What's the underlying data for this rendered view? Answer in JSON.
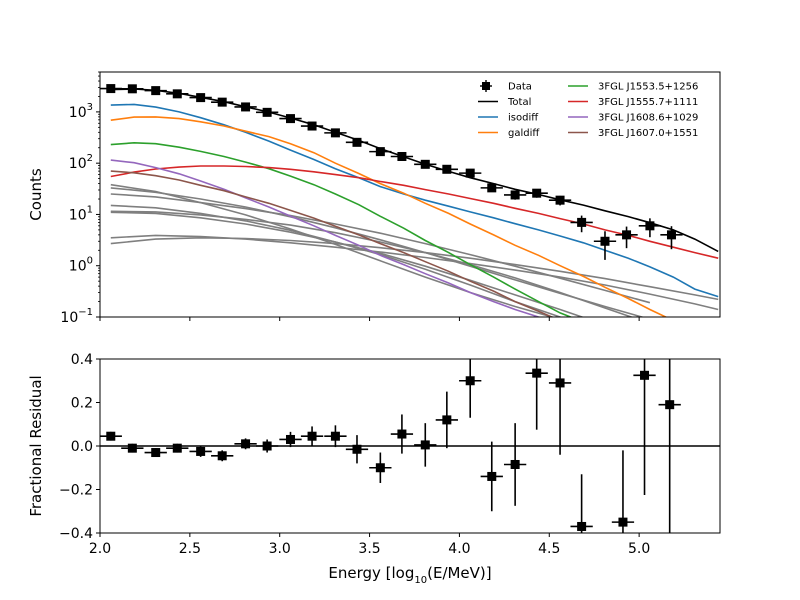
{
  "chart_data": [
    {
      "type": "line",
      "panel": "top",
      "ylabel": "Counts",
      "yscale": "log",
      "xlim": [
        2.0,
        5.45
      ],
      "ylim": [
        0.1,
        6000
      ],
      "grid": false,
      "legend_placement": "top-right",
      "x_ticks": [
        "2.0",
        "2.5",
        "3.0",
        "3.5",
        "4.0",
        "4.5",
        "5.0"
      ],
      "y_ticks": [
        {
          "base": "10",
          "exp": "3",
          "value": 1000
        },
        {
          "base": "10",
          "exp": "2",
          "value": 100
        },
        {
          "base": "10",
          "exp": "1",
          "value": 10
        },
        {
          "base": "10",
          "exp": "0",
          "value": 1
        },
        {
          "base": "10",
          "exp": "−1",
          "value": 0.1
        }
      ],
      "data_points": {
        "name": "Data",
        "color": "#000000",
        "x": [
          2.06,
          2.18,
          2.31,
          2.43,
          2.56,
          2.68,
          2.81,
          2.93,
          3.06,
          3.18,
          3.31,
          3.43,
          3.56,
          3.68,
          3.81,
          3.93,
          4.06,
          4.18,
          4.31,
          4.43,
          4.56,
          4.68,
          4.81,
          4.93,
          5.06,
          5.18
        ],
        "y": [
          2850,
          2820,
          2600,
          2250,
          1900,
          1550,
          1250,
          980,
          740,
          530,
          390,
          255,
          168,
          135,
          95,
          76,
          64,
          33,
          24,
          26,
          19,
          7,
          3,
          4,
          6,
          4
        ],
        "yerr_low": [
          55,
          55,
          52,
          48,
          44,
          40,
          36,
          31,
          27,
          23,
          20,
          16,
          13,
          11,
          9,
          8,
          8,
          5.5,
          4.6,
          4.8,
          4,
          2.5,
          1.7,
          1.8,
          2.4,
          1.9
        ],
        "yerr_high": [
          55,
          55,
          52,
          48,
          44,
          40,
          36,
          31,
          27,
          23,
          20,
          16,
          13,
          11,
          9,
          8,
          8,
          5.5,
          4.6,
          4.8,
          4,
          2.5,
          1.7,
          1.8,
          2.4,
          1.9
        ],
        "xerr": 0.062
      },
      "series": [
        {
          "name": "Total",
          "color": "#000000",
          "x": [
            2.06,
            2.19,
            2.31,
            2.44,
            2.56,
            2.69,
            2.81,
            2.94,
            3.06,
            3.19,
            3.31,
            3.44,
            3.56,
            3.69,
            3.81,
            3.94,
            4.06,
            4.19,
            4.31,
            4.44,
            4.56,
            4.69,
            4.81,
            4.94,
            5.06,
            5.19,
            5.31,
            5.44
          ],
          "y": [
            2720,
            2800,
            2640,
            2300,
            1930,
            1580,
            1260,
            990,
            760,
            560,
            400,
            278,
            192,
            133,
            95,
            69,
            52,
            40,
            31,
            24.5,
            19.3,
            15.2,
            11.8,
            9.1,
            6.9,
            5.0,
            3.3,
            1.9
          ]
        },
        {
          "name": "isodiff",
          "color": "#1f77b4",
          "x": [
            2.06,
            2.19,
            2.31,
            2.44,
            2.56,
            2.69,
            2.81,
            2.94,
            3.06,
            3.19,
            3.31,
            3.44,
            3.56,
            3.69,
            3.81,
            3.94,
            4.06,
            4.19,
            4.31,
            4.44,
            4.56,
            4.69,
            4.81,
            4.94,
            5.06,
            5.19,
            5.31,
            5.44
          ],
          "y": [
            1360,
            1400,
            1240,
            1000,
            770,
            560,
            400,
            270,
            180,
            118,
            78,
            52,
            35,
            25,
            19,
            14.5,
            11.2,
            8.6,
            6.6,
            5.0,
            3.8,
            2.8,
            2.0,
            1.4,
            0.95,
            0.6,
            0.35,
            0.25
          ]
        },
        {
          "name": "galdiff",
          "color": "#ff7f0e",
          "x": [
            2.06,
            2.19,
            2.31,
            2.44,
            2.56,
            2.69,
            2.81,
            2.94,
            3.06,
            3.19,
            3.31,
            3.44,
            3.56,
            3.69,
            3.81,
            3.94,
            4.06,
            4.19,
            4.31,
            4.44,
            4.56,
            4.69,
            4.81,
            4.94,
            5.06,
            5.19
          ],
          "y": [
            690,
            790,
            800,
            740,
            640,
            530,
            420,
            330,
            240,
            160,
            100,
            63,
            40,
            26,
            16.5,
            10.5,
            6.5,
            4.0,
            2.5,
            1.6,
            1.0,
            0.62,
            0.38,
            0.23,
            0.14,
            0.085
          ]
        },
        {
          "name": "3FGL J1553.5+1256",
          "color": "#2ca02c",
          "x": [
            2.06,
            2.19,
            2.31,
            2.44,
            2.56,
            2.69,
            2.81,
            2.94,
            3.06,
            3.19,
            3.31,
            3.44,
            3.56,
            3.69,
            3.81,
            3.94,
            4.06,
            4.19,
            4.31,
            4.44,
            4.56,
            4.69
          ],
          "y": [
            230,
            250,
            240,
            205,
            170,
            135,
            105,
            78,
            56,
            38,
            25,
            15.5,
            9.2,
            5.4,
            3.1,
            1.8,
            1.05,
            0.6,
            0.35,
            0.2,
            0.12,
            0.08
          ]
        },
        {
          "name": "3FGL J1555.7+1111",
          "color": "#d62728",
          "x": [
            2.06,
            2.19,
            2.31,
            2.44,
            2.56,
            2.69,
            2.81,
            2.94,
            3.06,
            3.19,
            3.31,
            3.44,
            3.56,
            3.69,
            3.81,
            3.94,
            4.06,
            4.19,
            4.31,
            4.44,
            4.56,
            4.69,
            4.81,
            4.94,
            5.06,
            5.19,
            5.31,
            5.44
          ],
          "y": [
            55,
            67,
            77,
            84,
            88,
            88,
            86,
            82,
            76,
            68,
            60,
            52,
            44,
            37,
            30.5,
            25,
            20.5,
            16.5,
            13.2,
            10.5,
            8.3,
            6.5,
            5.0,
            3.9,
            3.0,
            2.3,
            1.8,
            1.4
          ]
        },
        {
          "name": "3FGL J1608.6+1029",
          "color": "#9467bd",
          "x": [
            2.06,
            2.19,
            2.31,
            2.44,
            2.56,
            2.69,
            2.81,
            2.94,
            3.06,
            3.19,
            3.31,
            3.44,
            3.56,
            3.69,
            3.81,
            3.94,
            4.06,
            4.19,
            4.31,
            4.44,
            4.56
          ],
          "y": [
            115,
            102,
            82,
            62,
            45,
            31,
            21,
            14,
            9.3,
            6.0,
            3.9,
            2.5,
            1.6,
            1.05,
            0.7,
            0.46,
            0.3,
            0.2,
            0.14,
            0.1,
            0.08
          ]
        },
        {
          "name": "3FGL J1607.0+1551",
          "color": "#8c564b",
          "x": [
            2.06,
            2.19,
            2.31,
            2.44,
            2.56,
            2.69,
            2.81,
            2.94,
            3.06,
            3.19,
            3.31,
            3.44,
            3.56,
            3.69,
            3.81,
            3.94,
            4.06,
            4.19,
            4.31,
            4.44,
            4.56
          ],
          "y": [
            70,
            65,
            57,
            47,
            37,
            29,
            22,
            16.5,
            12,
            8.5,
            5.9,
            4.0,
            2.7,
            1.8,
            1.2,
            0.78,
            0.5,
            0.32,
            0.2,
            0.13,
            0.085
          ]
        }
      ],
      "unlabeled_series": {
        "color": "#7f7f7f",
        "lines": [
          {
            "x": [
              2.06,
              2.31,
              2.56,
              2.81,
              3.06,
              3.31,
              3.56,
              3.81,
              4.06,
              4.31,
              4.56,
              4.81,
              5.06
            ],
            "y": [
              38,
              28,
              17,
              9.8,
              5.2,
              2.6,
              1.25,
              0.6,
              0.3,
              0.16,
              0.09,
              0.06,
              0.045
            ]
          },
          {
            "x": [
              2.06,
              2.31,
              2.56,
              2.81,
              3.06,
              3.31,
              3.56,
              3.81,
              4.06,
              4.31,
              4.56,
              4.81,
              5.06
            ],
            "y": [
              33,
              27,
              20,
              14,
              9,
              5.5,
              3.2,
              1.8,
              0.98,
              0.53,
              0.29,
              0.16,
              0.09
            ]
          },
          {
            "x": [
              2.06,
              2.31,
              2.56,
              2.81,
              3.06,
              3.31,
              3.56,
              3.81,
              4.06,
              4.31,
              4.56,
              4.81,
              5.06
            ],
            "y": [
              25,
              22,
              17,
              13,
              9.5,
              6.5,
              4.3,
              2.7,
              1.65,
              0.98,
              0.57,
              0.33,
              0.19
            ]
          },
          {
            "x": [
              2.06,
              2.31,
              2.56,
              2.81,
              3.06,
              3.31,
              3.56,
              3.81,
              4.06,
              4.31,
              4.56,
              4.81
            ],
            "y": [
              15,
              13.5,
              10.5,
              7.5,
              4.9,
              2.9,
              1.65,
              0.85,
              0.42,
              0.2,
              0.1,
              0.055
            ]
          },
          {
            "x": [
              2.06,
              2.31,
              2.56,
              2.81,
              3.06,
              3.31,
              3.56,
              3.81,
              4.06,
              4.31,
              4.56,
              4.81,
              5.06
            ],
            "y": [
              11,
              10.5,
              8.6,
              6.5,
              4.5,
              2.9,
              1.75,
              0.98,
              0.52,
              0.27,
              0.14,
              0.07,
              0.035
            ]
          },
          {
            "x": [
              2.06,
              2.31,
              2.56,
              2.81,
              3.06,
              3.31,
              3.56,
              3.81,
              4.06,
              4.31,
              4.56,
              4.81,
              5.06
            ],
            "y": [
              11.5,
              11.2,
              9.8,
              8.0,
              6.2,
              4.4,
              2.9,
              1.8,
              1.05,
              0.58,
              0.3,
              0.15,
              0.075
            ]
          },
          {
            "x": [
              2.06,
              2.31,
              2.56,
              2.81,
              3.06,
              3.31,
              3.56,
              3.81,
              4.06,
              4.31,
              4.56,
              4.81,
              5.06,
              5.31,
              5.44
            ],
            "y": [
              3.5,
              3.9,
              3.7,
              3.3,
              2.8,
              2.3,
              1.85,
              1.45,
              1.1,
              0.82,
              0.6,
              0.42,
              0.28,
              0.18,
              0.14
            ]
          },
          {
            "x": [
              2.06,
              2.31,
              2.56,
              2.81,
              3.06,
              3.31,
              3.56,
              3.81,
              4.06,
              4.31,
              4.56,
              4.81,
              5.06,
              5.31,
              5.44
            ],
            "y": [
              2.7,
              3.3,
              3.5,
              3.4,
              3.1,
              2.7,
              2.25,
              1.8,
              1.4,
              1.05,
              0.78,
              0.56,
              0.39,
              0.27,
              0.22
            ]
          }
        ]
      },
      "legend": [
        {
          "label": "Data",
          "color": "#000000",
          "marker": "square-errorbar"
        },
        {
          "label": "Total",
          "color": "#000000",
          "marker": "line"
        },
        {
          "label": "isodiff",
          "color": "#1f77b4",
          "marker": "line"
        },
        {
          "label": "galdiff",
          "color": "#ff7f0e",
          "marker": "line"
        },
        {
          "label": "3FGL J1553.5+1256",
          "color": "#2ca02c",
          "marker": "line"
        },
        {
          "label": "3FGL J1555.7+1111",
          "color": "#d62728",
          "marker": "line"
        },
        {
          "label": "3FGL J1608.6+1029",
          "color": "#9467bd",
          "marker": "line"
        },
        {
          "label": "3FGL J1607.0+1551",
          "color": "#8c564b",
          "marker": "line"
        }
      ]
    },
    {
      "type": "scatter",
      "panel": "bottom",
      "xlabel_pre": "Energy [log",
      "xlabel_sub": "10",
      "xlabel_post": "(E/MeV)]",
      "ylabel": "Fractional Residual",
      "xlim": [
        2.0,
        5.45
      ],
      "ylim": [
        -0.4,
        0.4
      ],
      "grid": false,
      "zero_line": true,
      "x_ticks": [
        "2.0",
        "2.5",
        "3.0",
        "3.5",
        "4.0",
        "4.5",
        "5.0"
      ],
      "y_ticks": [
        "−0.4",
        "−0.2",
        "0.0",
        "0.2",
        "0.4"
      ],
      "y_tick_values": [
        -0.4,
        -0.2,
        0.0,
        0.2,
        0.4
      ],
      "x": [
        2.06,
        2.18,
        2.31,
        2.43,
        2.56,
        2.68,
        2.81,
        2.93,
        3.06,
        3.18,
        3.31,
        3.43,
        3.56,
        3.68,
        3.81,
        3.93,
        4.06,
        4.18,
        4.31,
        4.43,
        4.56,
        4.68,
        4.91,
        5.03,
        5.17
      ],
      "y": [
        0.045,
        -0.01,
        -0.03,
        -0.01,
        -0.025,
        -0.045,
        0.01,
        0.0,
        0.03,
        0.045,
        0.045,
        -0.015,
        -0.1,
        0.055,
        0.005,
        0.12,
        0.3,
        -0.14,
        -0.085,
        0.335,
        0.29,
        -0.37,
        -0.35,
        0.325,
        0.19
      ],
      "yerr": [
        0.02,
        0.02,
        0.02,
        0.02,
        0.025,
        0.025,
        0.025,
        0.03,
        0.035,
        0.045,
        0.05,
        0.065,
        0.07,
        0.09,
        0.1,
        0.13,
        0.17,
        0.16,
        0.19,
        0.26,
        0.33,
        0.24,
        0.33,
        0.55,
        0.7
      ],
      "xerr": 0.062
    }
  ]
}
